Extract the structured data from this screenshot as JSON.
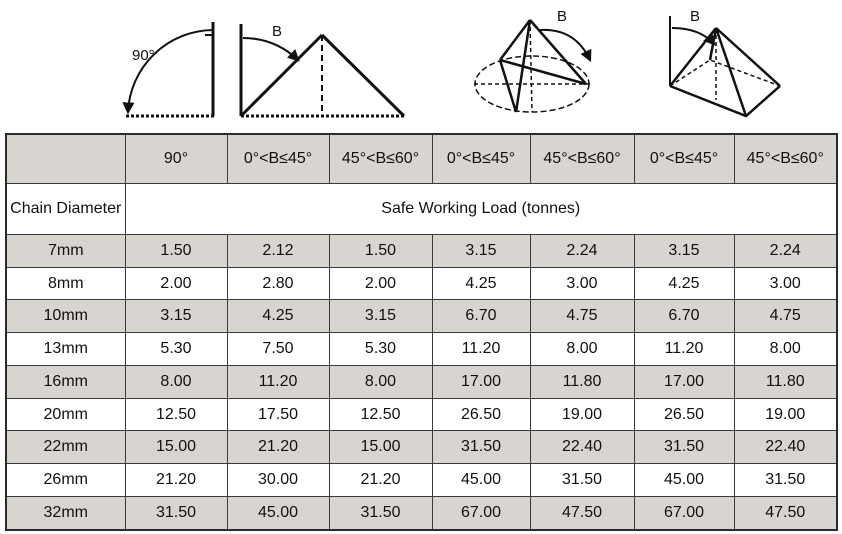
{
  "diagram_labels": [
    "90°",
    "B",
    "B",
    "B"
  ],
  "table": {
    "angles": [
      "90°",
      "0°<B≤45°",
      "45°<B≤60°",
      "0°<B≤45°",
      "45°<B≤60°",
      "0°<B≤45°",
      "45°<B≤60°"
    ],
    "row_header": "Chain Diameter",
    "span_label": "Safe Working Load (tonnes)",
    "rows": [
      [
        "7mm",
        "1.50",
        "2.12",
        "1.50",
        "3.15",
        "2.24",
        "3.15",
        "2.24"
      ],
      [
        "8mm",
        "2.00",
        "2.80",
        "2.00",
        "4.25",
        "3.00",
        "4.25",
        "3.00"
      ],
      [
        "10mm",
        "3.15",
        "4.25",
        "3.15",
        "6.70",
        "4.75",
        "6.70",
        "4.75"
      ],
      [
        "13mm",
        "5.30",
        "7.50",
        "5.30",
        "11.20",
        "8.00",
        "11.20",
        "8.00"
      ],
      [
        "16mm",
        "8.00",
        "11.20",
        "8.00",
        "17.00",
        "11.80",
        "17.00",
        "11.80"
      ],
      [
        "20mm",
        "12.50",
        "17.50",
        "12.50",
        "26.50",
        "19.00",
        "26.50",
        "19.00"
      ],
      [
        "22mm",
        "15.00",
        "21.20",
        "15.00",
        "31.50",
        "22.40",
        "31.50",
        "22.40"
      ],
      [
        "26mm",
        "21.20",
        "30.00",
        "21.20",
        "45.00",
        "31.50",
        "45.00",
        "31.50"
      ],
      [
        "32mm",
        "31.50",
        "45.00",
        "31.50",
        "67.00",
        "47.50",
        "67.00",
        "47.50"
      ]
    ]
  }
}
